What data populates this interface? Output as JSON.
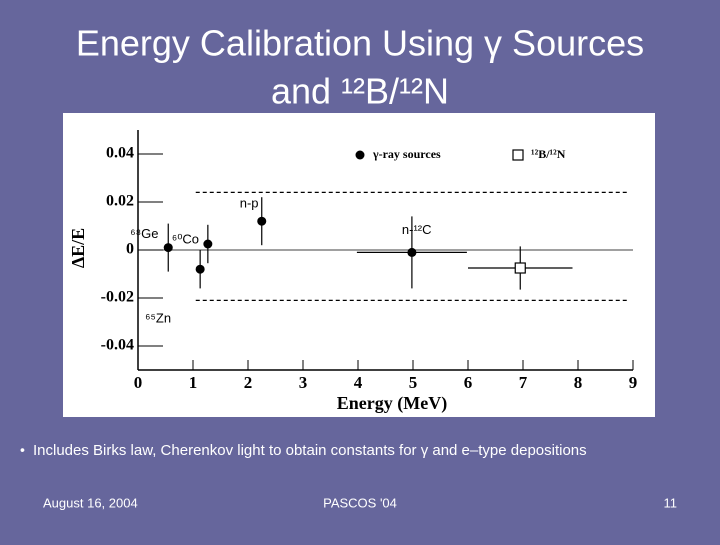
{
  "slide": {
    "title": [
      "Energy Calibration Using γ Sources",
      "and ¹²B/¹²N"
    ],
    "bullet": "Includes Birks law, Cherenkov light to obtain constants for γ and e–type depositions",
    "footer": {
      "date": "August 16, 2004",
      "event": "PASCOS '04",
      "page": "11"
    }
  },
  "chart_data": {
    "type": "scatter",
    "x_label": "Energy (MeV)",
    "y_label": "ΔE/E",
    "xlim": [
      0,
      9
    ],
    "ylim": [
      -0.05,
      0.05
    ],
    "xticks": [
      0,
      1,
      2,
      3,
      4,
      5,
      6,
      7,
      8,
      9
    ],
    "yticks": [
      0.04,
      0.02,
      0,
      -0.02,
      -0.04
    ],
    "zero_line": 0,
    "bands": [
      {
        "x": [
          1.05,
          8.9
        ],
        "y": 0.024
      },
      {
        "x": [
          1.05,
          8.9
        ],
        "y": -0.021
      }
    ],
    "legend": "top",
    "series": [
      {
        "name": "γ-ray sources",
        "marker": "filled-circle",
        "color": "#000000",
        "x": [
          0.55,
          1.13,
          1.27,
          2.25,
          4.98
        ],
        "values": [
          0.001,
          -0.008,
          0.0025,
          0.012,
          -0.001
        ],
        "yerr": [
          0.01,
          0.008,
          0.008,
          0.01,
          0.015
        ],
        "xerr": [
          null,
          null,
          null,
          null,
          1.0
        ],
        "point_labels": [
          "⁶⁸Ge",
          "⁶⁵Zn",
          "⁶⁰Co",
          "n-p",
          "n-¹²C"
        ]
      },
      {
        "name": "¹²B/¹²N",
        "marker": "open-square",
        "color": "#000000",
        "x": [
          6.95
        ],
        "values": [
          -0.0075
        ],
        "yerr": [
          0.009
        ],
        "xerr": [
          0.95
        ]
      }
    ]
  }
}
